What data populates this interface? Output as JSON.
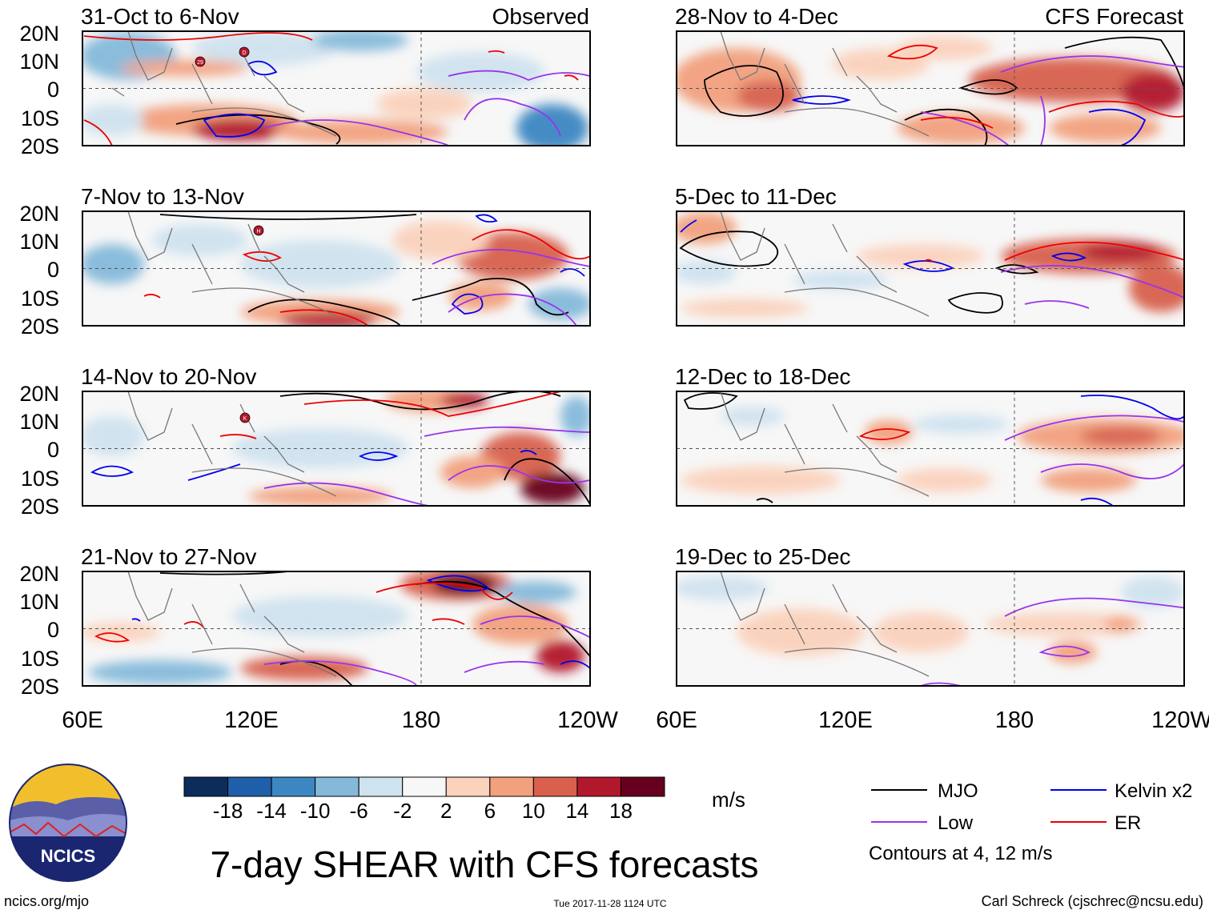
{
  "figure": {
    "title": "7-day SHEAR with CFS forecasts",
    "units": "m/s",
    "website": "ncics.org/mjo",
    "timestamp": "Tue 2017-11-28 1124 UTC",
    "author": "Carl Schreck (cjschrec@ncsu.edu)",
    "logo_text": "NCICS"
  },
  "panels_left": [
    {
      "period": "31-Oct to 6-Nov",
      "tag": "Observed"
    },
    {
      "period": "7-Nov to 13-Nov",
      "tag": ""
    },
    {
      "period": "14-Nov to 20-Nov",
      "tag": ""
    },
    {
      "period": "21-Nov to 27-Nov",
      "tag": ""
    }
  ],
  "panels_right": [
    {
      "period": "28-Nov to 4-Dec",
      "tag": "CFS Forecast"
    },
    {
      "period": "5-Dec to 11-Dec",
      "tag": ""
    },
    {
      "period": "12-Dec to 18-Dec",
      "tag": ""
    },
    {
      "period": "19-Dec to 25-Dec",
      "tag": ""
    }
  ],
  "lat_labels": [
    "20N",
    "10N",
    "0",
    "10S",
    "20S"
  ],
  "lon_labels": [
    "60E",
    "120E",
    "180",
    "120W"
  ],
  "colorbar": {
    "ticks": [
      "-18",
      "-14",
      "-10",
      "-6",
      "-2",
      "2",
      "6",
      "10",
      "14",
      "18"
    ],
    "colors": [
      "#0c2c5c",
      "#1f5ea8",
      "#3c87c2",
      "#85b9da",
      "#cfe2ef",
      "#f7f7f7",
      "#fbd2bc",
      "#f2a07e",
      "#d8604d",
      "#b2182b",
      "#67001f"
    ]
  },
  "legend": {
    "items": [
      {
        "label": "MJO",
        "color": "#000000"
      },
      {
        "label": "Kelvin x2",
        "color": "#0000ee"
      },
      {
        "label": "Low",
        "color": "#9933ee"
      },
      {
        "label": "ER",
        "color": "#ee0000"
      }
    ],
    "note": "Contours at 4, 12 m/s"
  },
  "storms": [
    {
      "panel": 0,
      "label": "29"
    },
    {
      "panel": 0,
      "label": "D"
    },
    {
      "panel": 1,
      "label": "H"
    },
    {
      "panel": 2,
      "label": "K"
    }
  ]
}
